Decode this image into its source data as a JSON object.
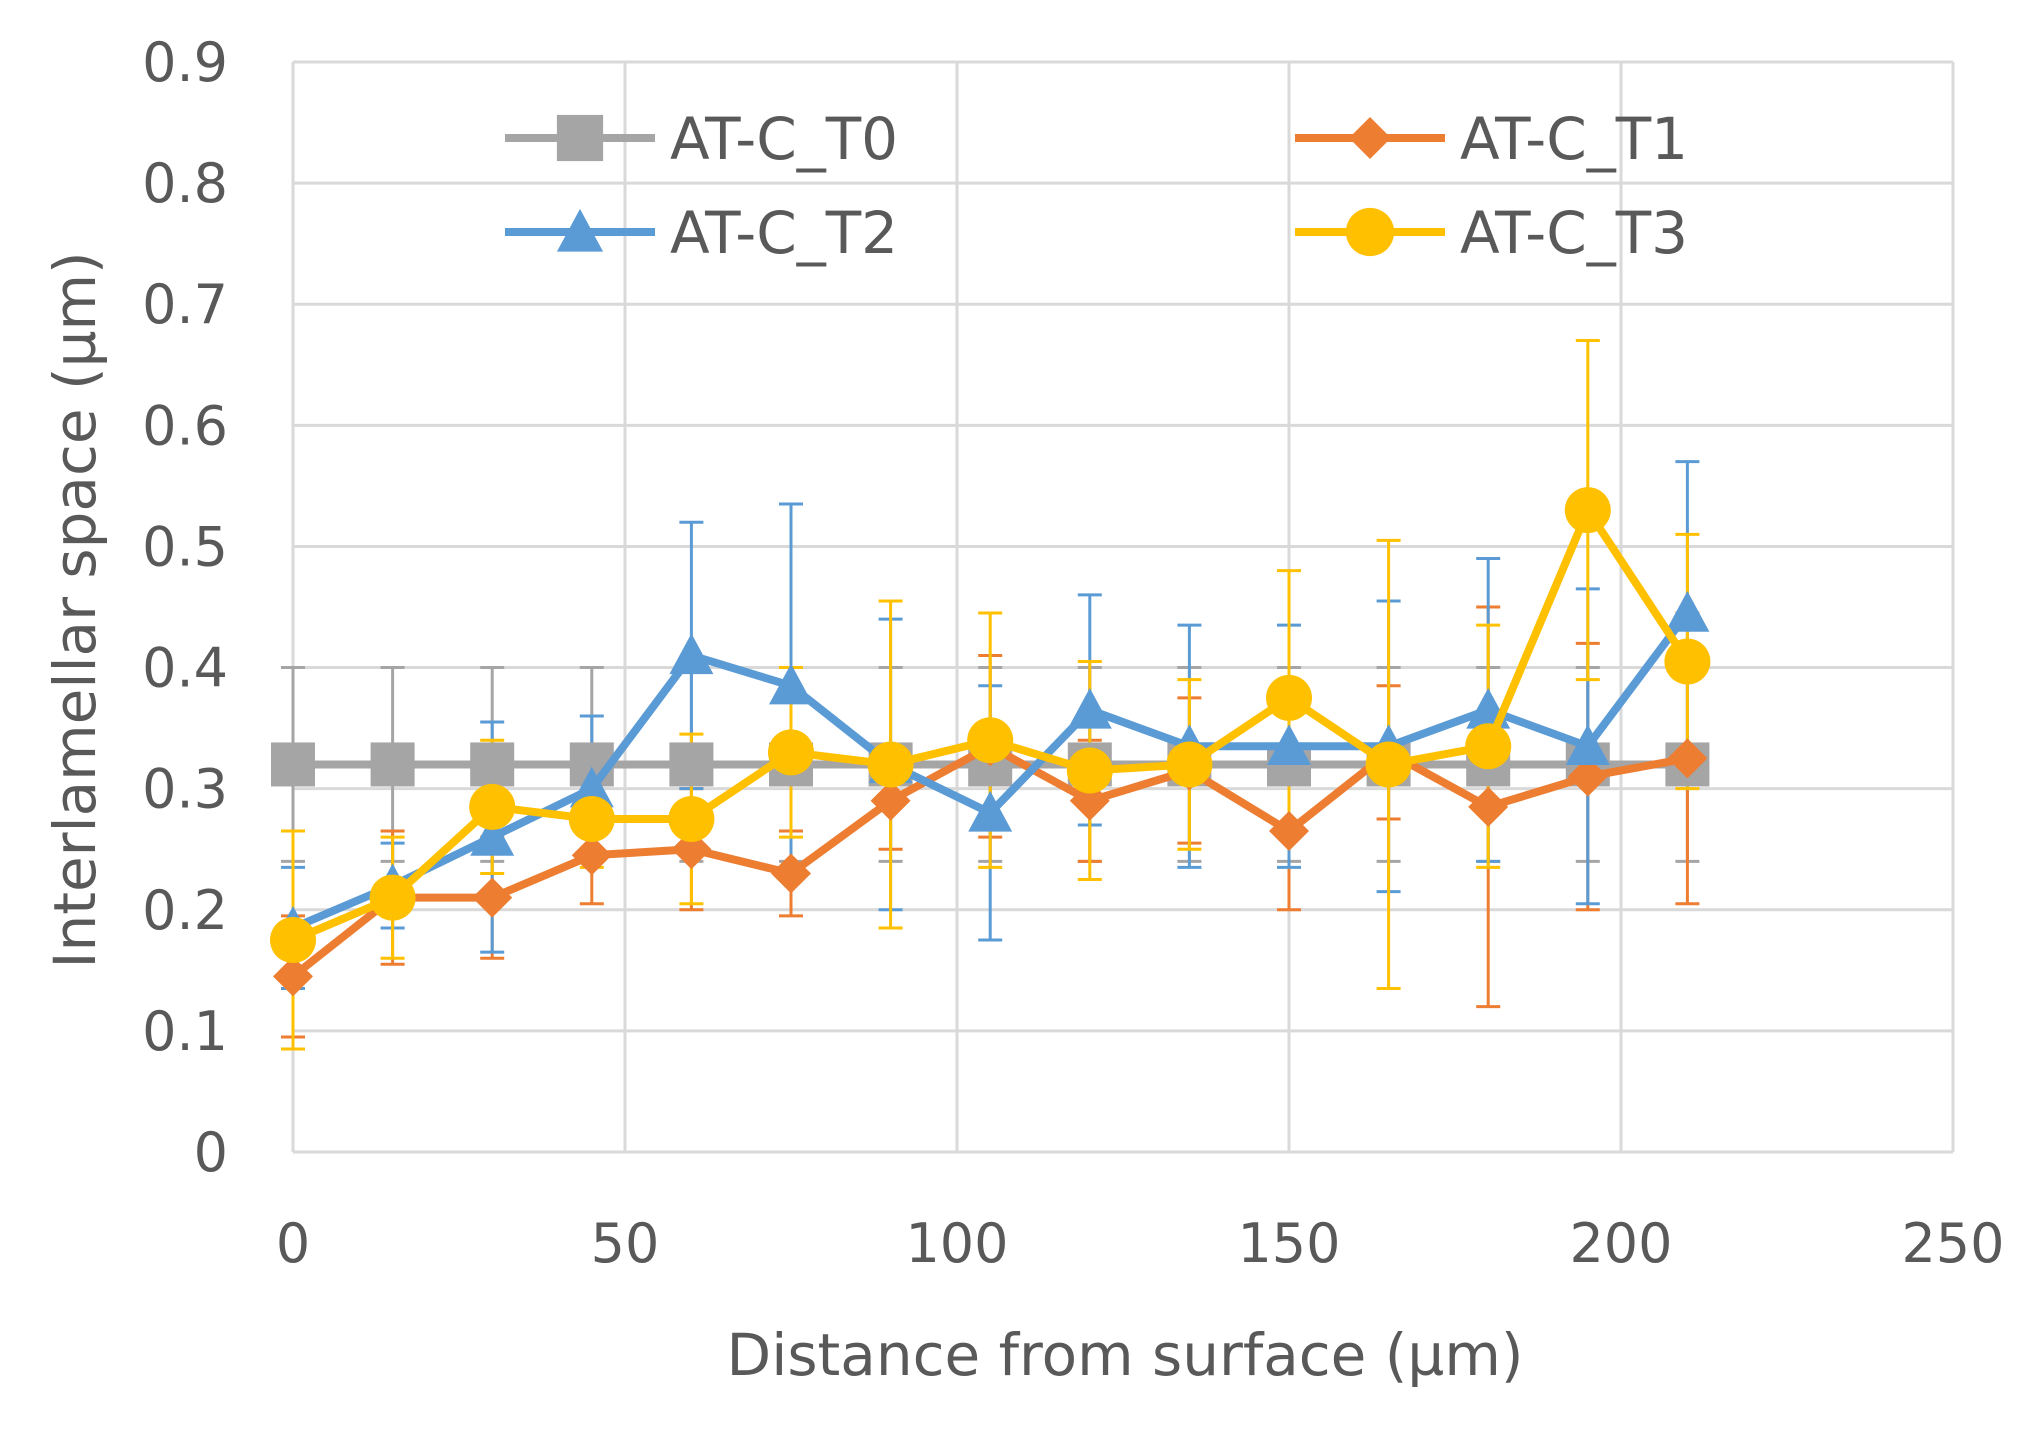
{
  "chart_data": {
    "type": "line",
    "title": "",
    "xlabel": "Distance from surface (µm)",
    "ylabel": "Interlamellar space (µm)",
    "xlim": [
      0,
      250
    ],
    "ylim": [
      0,
      0.9
    ],
    "x_ticks": [
      0,
      50,
      100,
      150,
      200,
      250
    ],
    "y_ticks": [
      0,
      0.1,
      0.2,
      0.3,
      0.4,
      0.5,
      0.6,
      0.7,
      0.8,
      0.9
    ],
    "x_tick_labels": [
      "0",
      "50",
      "100",
      "150",
      "200",
      "250"
    ],
    "y_tick_labels": [
      "0",
      "0.1",
      "0.2",
      "0.3",
      "0.4",
      "0.5",
      "0.6",
      "0.7",
      "0.8",
      "0.9"
    ],
    "grid": true,
    "legend_position": "top",
    "x": [
      0,
      15,
      30,
      45,
      60,
      75,
      90,
      105,
      120,
      135,
      150,
      165,
      180,
      195,
      210
    ],
    "series": [
      {
        "name": "AT-C_T0",
        "color": "#a5a5a5",
        "marker": "square",
        "values": [
          0.32,
          0.32,
          0.32,
          0.32,
          0.32,
          0.32,
          0.32,
          0.32,
          0.32,
          0.32,
          0.32,
          0.32,
          0.32,
          0.32,
          0.32
        ],
        "errors": [
          0.08,
          0.08,
          0.08,
          0.08,
          0.08,
          0.08,
          0.08,
          0.08,
          0.08,
          0.08,
          0.08,
          0.08,
          0.08,
          0.08,
          0.08
        ]
      },
      {
        "name": "AT-C_T1",
        "color": "#ed7d31",
        "marker": "diamond",
        "values": [
          0.145,
          0.21,
          0.21,
          0.245,
          0.25,
          0.23,
          0.29,
          0.335,
          0.29,
          0.315,
          0.265,
          0.33,
          0.285,
          0.31,
          0.325
        ],
        "errors": [
          0.05,
          0.055,
          0.05,
          0.04,
          0.05,
          0.035,
          0.04,
          0.075,
          0.05,
          0.06,
          0.065,
          0.055,
          0.165,
          0.11,
          0.12
        ]
      },
      {
        "name": "AT-C_T2",
        "color": "#5b9bd5",
        "marker": "triangle",
        "values": [
          0.185,
          0.22,
          0.26,
          0.3,
          0.41,
          0.385,
          0.32,
          0.28,
          0.365,
          0.335,
          0.335,
          0.335,
          0.365,
          0.335,
          0.445
        ],
        "errors": [
          0.05,
          0.035,
          0.095,
          0.06,
          0.11,
          0.15,
          0.12,
          0.105,
          0.095,
          0.1,
          0.1,
          0.12,
          0.125,
          0.13,
          0.125
        ]
      },
      {
        "name": "AT-C_T3",
        "color": "#ffc000",
        "marker": "circle",
        "values": [
          0.175,
          0.21,
          0.285,
          0.275,
          0.275,
          0.33,
          0.32,
          0.34,
          0.315,
          0.32,
          0.375,
          0.32,
          0.335,
          0.53,
          0.405
        ],
        "errors": [
          0.09,
          0.05,
          0.055,
          0.04,
          0.07,
          0.07,
          0.135,
          0.105,
          0.09,
          0.07,
          0.105,
          0.185,
          0.1,
          0.14,
          0.105
        ]
      }
    ]
  }
}
